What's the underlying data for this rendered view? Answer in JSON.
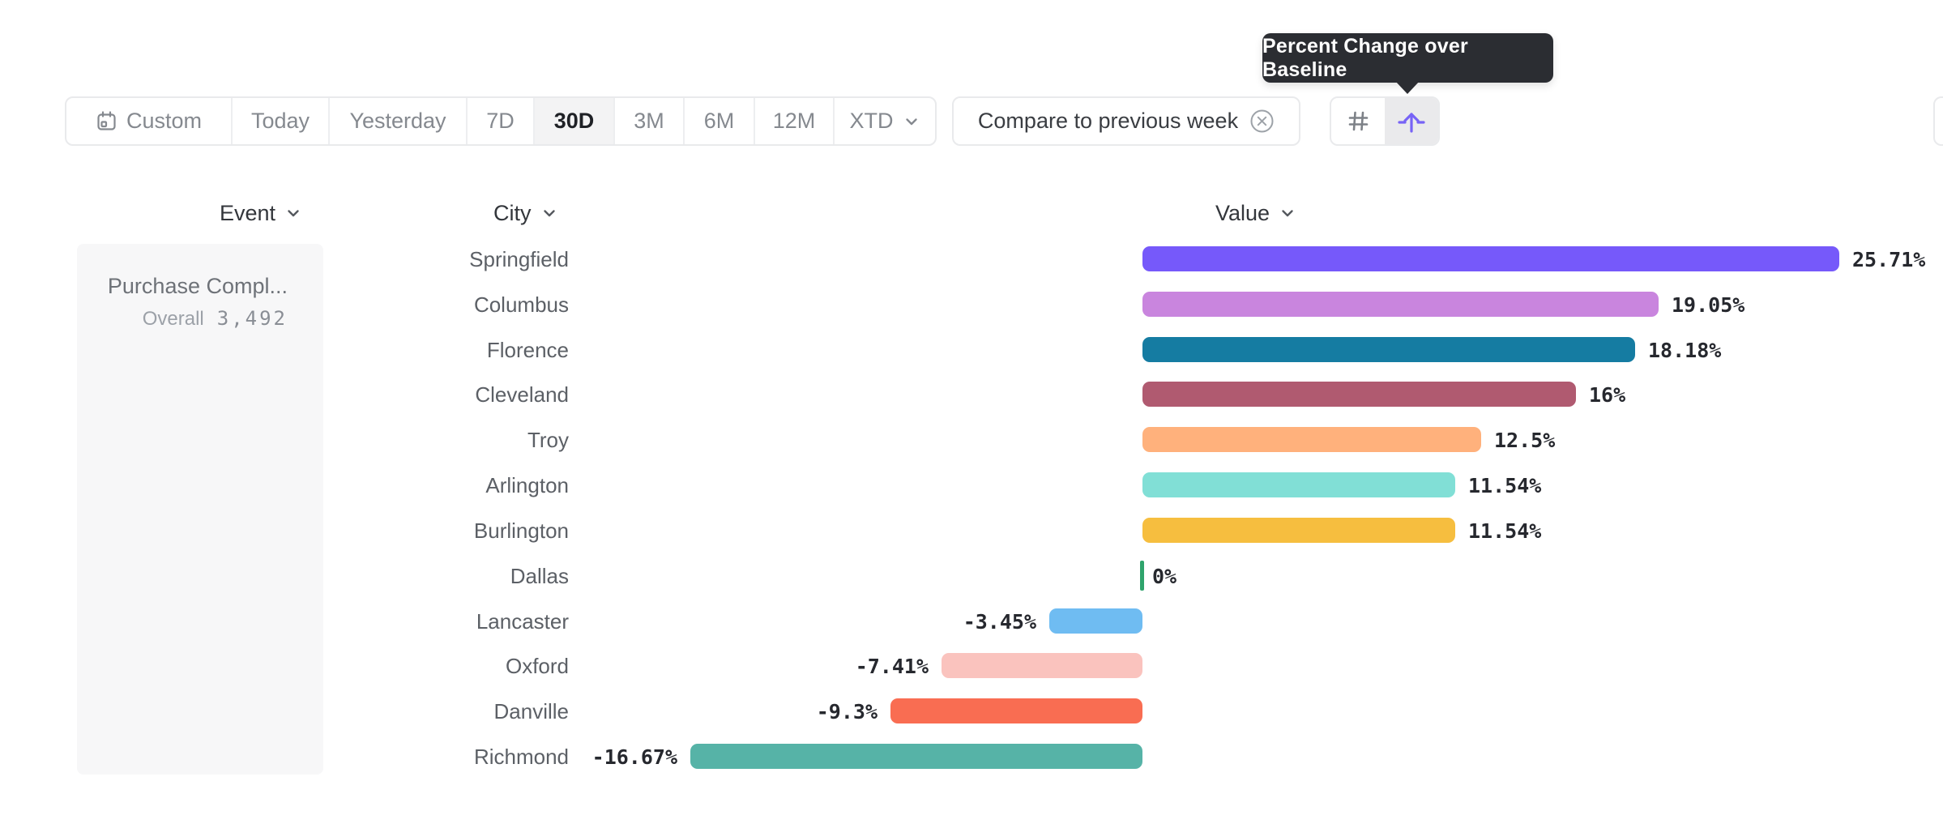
{
  "tooltip": {
    "text": "Percent Change over Baseline"
  },
  "toolbar": {
    "date_ranges": [
      {
        "label": "Custom",
        "selected": false,
        "icon": "calendar-icon"
      },
      {
        "label": "Today",
        "selected": false
      },
      {
        "label": "Yesterday",
        "selected": false
      },
      {
        "label": "7D",
        "selected": false
      },
      {
        "label": "30D",
        "selected": true
      },
      {
        "label": "3M",
        "selected": false
      },
      {
        "label": "6M",
        "selected": false
      },
      {
        "label": "12M",
        "selected": false
      },
      {
        "label": "XTD",
        "selected": false,
        "icon": "chevron-down-icon"
      }
    ],
    "compare_filter": {
      "label": "Compare to previous week",
      "icon": "remove-icon"
    },
    "view_toggle": [
      {
        "name": "number-values",
        "icon": "hash-icon",
        "selected": false
      },
      {
        "name": "percent-change-over-baseline",
        "icon": "baseline-arrow-icon",
        "selected": true
      }
    ]
  },
  "columns": {
    "event": "Event",
    "city": "City",
    "value": "Value"
  },
  "event_panel": {
    "event_name": "Purchase Compl...",
    "metric_label": "Overall",
    "metric_value": "3,492"
  },
  "chart_data": {
    "type": "bar",
    "orientation": "horizontal",
    "title": "Percent Change over Baseline",
    "xlabel": "",
    "ylabel": "City",
    "unit": "%",
    "baseline": 0,
    "grid": false,
    "legend": false,
    "categories": [
      "Springfield",
      "Columbus",
      "Florence",
      "Cleveland",
      "Troy",
      "Arlington",
      "Burlington",
      "Dallas",
      "Lancaster",
      "Oxford",
      "Danville",
      "Richmond"
    ],
    "values": [
      25.71,
      19.05,
      18.18,
      16,
      12.5,
      11.54,
      11.54,
      0,
      -3.45,
      -7.41,
      -9.3,
      -16.67
    ],
    "value_labels": [
      "25.71%",
      "19.05%",
      "18.18%",
      "16%",
      "12.5%",
      "11.54%",
      "11.54%",
      "0%",
      "-3.45%",
      "-7.41%",
      "-9.3%",
      "-16.67%"
    ],
    "bar_colors": [
      "#7659FA",
      "#C985DE",
      "#157CA2",
      "#B05A70",
      "#FFB17C",
      "#81DFD6",
      "#F6BE3F",
      "#2FA46C",
      "#6FBCF2",
      "#FAC3BE",
      "#F96D52",
      "#56B3A7"
    ],
    "zero_line_color": "#2FA46C",
    "xlim": [
      -16.67,
      25.71
    ]
  },
  "colors": {
    "accent_purple": "#7763F6",
    "tooltip_bg": "#2B2D32",
    "value_text": "#26282E",
    "city_text": "#5C6066",
    "toolbar_text": "#85898F",
    "toolbar_selected_text": "#1F2126",
    "panel_bg": "#F7F7F8",
    "border": "#E9EAEC"
  }
}
